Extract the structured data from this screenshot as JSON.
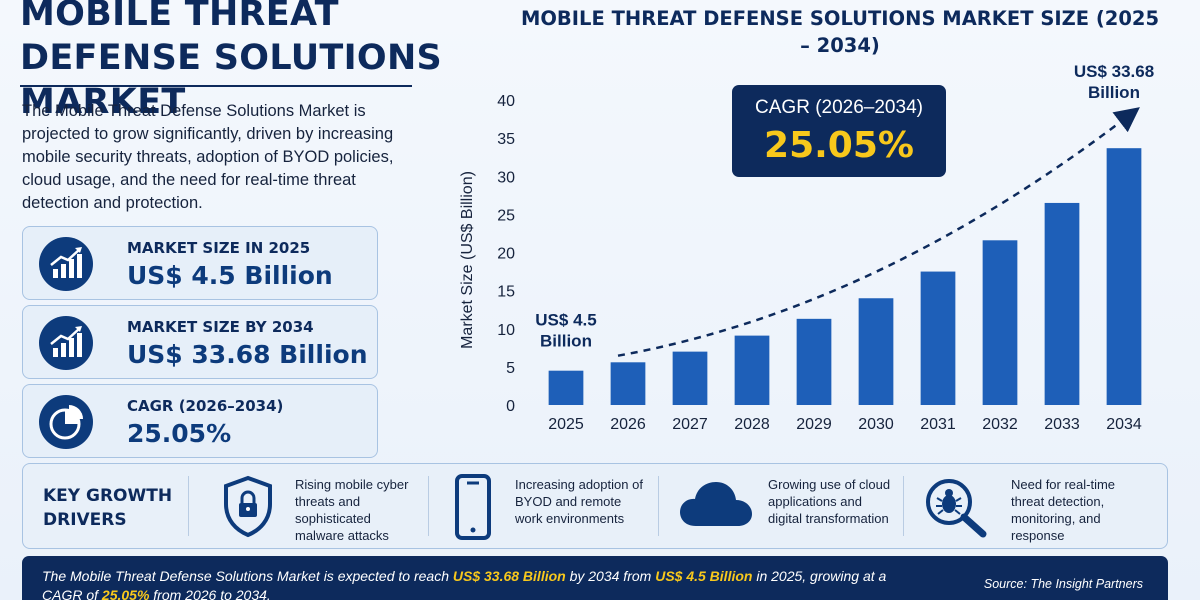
{
  "header": {
    "title": "MOBILE THREAT DEFENSE SOLUTIONS MARKET",
    "intro": "The Mobile Threat Defense Solutions Market is projected to grow significantly, driven by increasing mobile security threats, adoption of BYOD policies, cloud usage, and the need for real-time threat detection and protection."
  },
  "stats": [
    {
      "label": "MARKET SIZE IN 2025",
      "value": "US$ 4.5 Billion",
      "icon": "bar-growth-icon"
    },
    {
      "label": "MARKET SIZE BY 2034",
      "value": "US$ 33.68 Billion",
      "icon": "bar-growth-icon"
    },
    {
      "label": "CAGR (2026–2034)",
      "value": "25.05%",
      "icon": "pie-chart-icon"
    }
  ],
  "cagr_box": {
    "label": "CAGR (2026–2034)",
    "value": "25.05%"
  },
  "chart_data": {
    "type": "bar",
    "title": "MOBILE THREAT DEFENSE SOLUTIONS MARKET SIZE (2025 – 2034)",
    "xlabel": "",
    "ylabel": "Market Size (US$ Billion)",
    "categories": [
      "2025",
      "2026",
      "2027",
      "2028",
      "2029",
      "2030",
      "2031",
      "2032",
      "2033",
      "2034"
    ],
    "values": [
      4.5,
      5.6,
      7.0,
      9.1,
      11.3,
      14.0,
      17.5,
      21.6,
      26.5,
      33.68
    ],
    "ylim": [
      0,
      40
    ],
    "yticks": [
      0,
      5,
      10,
      15,
      20,
      25,
      30,
      35,
      40
    ],
    "grid": false,
    "bar_color": "#1e5fb8",
    "annotations": {
      "start": "US$ 4.5 Billion",
      "end": "US$ 33.68 Billion"
    }
  },
  "drivers": {
    "title": "KEY GROWTH DRIVERS",
    "items": [
      {
        "text": "Rising mobile cyber threats and sophisticated malware attacks",
        "icon": "shield-lock-icon"
      },
      {
        "text": "Increasing adoption of BYOD and remote work environments",
        "icon": "smartphone-icon"
      },
      {
        "text": "Growing use of cloud applications and digital transformation",
        "icon": "cloud-icon"
      },
      {
        "text": "Need for real-time threat detection, monitoring, and response",
        "icon": "bug-search-icon"
      }
    ]
  },
  "footer": {
    "t1": "The Mobile Threat Defense Solutions Market is expected to reach ",
    "h1": "US$ 33.68 Billion",
    "t2": " by 2034 from ",
    "h2": "US$ 4.5 Billion",
    "t3": " in 2025, growing at a CAGR of ",
    "h3": "25.05%",
    "t4": " from 2026 to 2034.",
    "source": "Source: The Insight Partners"
  },
  "colors": {
    "navy": "#0d2a5c",
    "accent": "#f8c81c",
    "bar": "#1e5fb8"
  }
}
